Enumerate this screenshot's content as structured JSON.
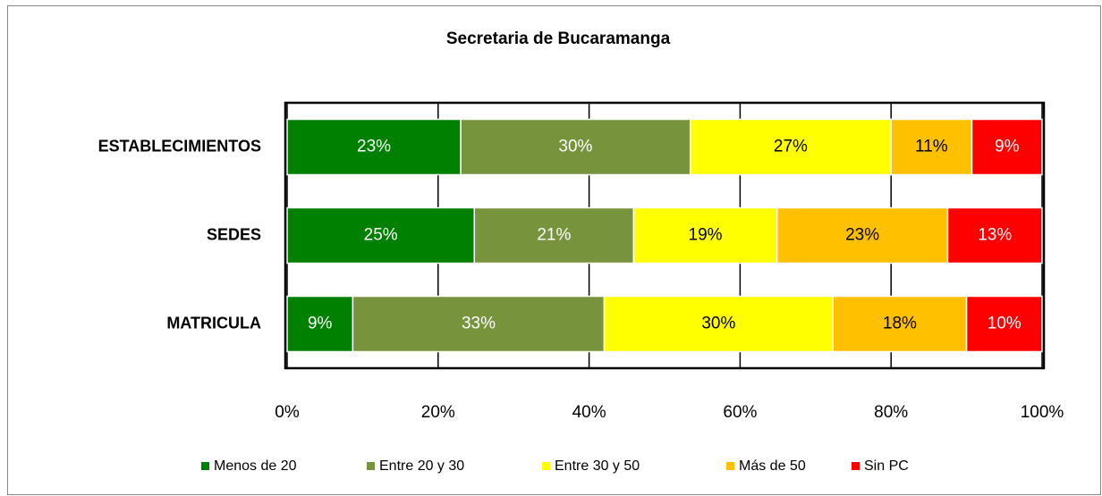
{
  "chart_data": {
    "type": "bar",
    "orientation": "horizontal",
    "stacked": true,
    "title": "Secretaria de Bucaramanga",
    "categories": [
      "ESTABLECIMIENTOS",
      "SEDES",
      "MATRICULA"
    ],
    "series": [
      {
        "name": "Menos de 20",
        "color": "#008000",
        "values": [
          23.0,
          24.8,
          8.7
        ],
        "value_labels": [
          "23%",
          "25%",
          "9%"
        ]
      },
      {
        "name": "Entre 20 y 30",
        "color": "#77933c",
        "values": [
          30.4,
          21.1,
          33.3
        ],
        "value_labels": [
          "30%",
          "21%",
          "33%"
        ]
      },
      {
        "name": "Entre 30 y 50",
        "color": "#ffff00",
        "values": [
          26.6,
          19.0,
          30.3
        ],
        "value_labels": [
          "27%",
          "19%",
          "30%"
        ]
      },
      {
        "name": "Más de 50",
        "color": "#ffc000",
        "values": [
          10.7,
          22.6,
          17.7
        ],
        "value_labels": [
          "11%",
          "23%",
          "18%"
        ]
      },
      {
        "name": "Sin PC",
        "color": "#ff0000",
        "values": [
          9.3,
          12.5,
          10.0
        ],
        "value_labels": [
          "9%",
          "13%",
          "10%"
        ]
      }
    ],
    "xlim": [
      0,
      100
    ],
    "xticks": [
      {
        "value": 0,
        "label": "0%"
      },
      {
        "value": 20,
        "label": "20%"
      },
      {
        "value": 40,
        "label": "40%"
      },
      {
        "value": 60,
        "label": "60%"
      },
      {
        "value": 80,
        "label": "80%"
      },
      {
        "value": 100,
        "label": "100%"
      }
    ],
    "grid": true,
    "legend": "bottom"
  }
}
